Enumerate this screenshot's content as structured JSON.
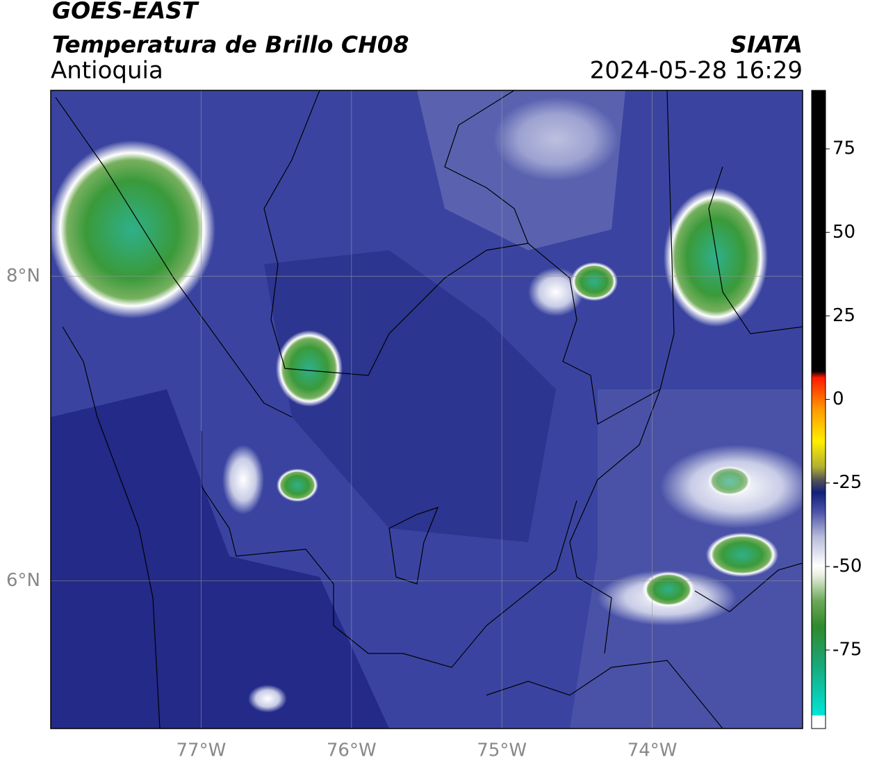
{
  "header": {
    "satellite": "GOES-EAST",
    "product": "Temperatura de Brillo CH08",
    "region": "Antioquia",
    "agency": "SIATA",
    "datetime": "2024-05-28 16:29"
  },
  "map": {
    "xlim": [
      -78,
      -73
    ],
    "ylim": [
      5.03,
      9.22
    ],
    "xticks": [
      {
        "value": -77,
        "label": "77°W"
      },
      {
        "value": -76,
        "label": "76°W"
      },
      {
        "value": -75,
        "label": "75°W"
      },
      {
        "value": -74,
        "label": "74°W"
      }
    ],
    "yticks": [
      {
        "value": 8,
        "label": "8°N"
      },
      {
        "value": 6,
        "label": "6°N"
      }
    ],
    "grid": true
  },
  "colorbar": {
    "clim": [
      -98.5,
      92.5
    ],
    "ticks": [
      75,
      50,
      25,
      0,
      -25,
      -50,
      -75
    ]
  }
}
